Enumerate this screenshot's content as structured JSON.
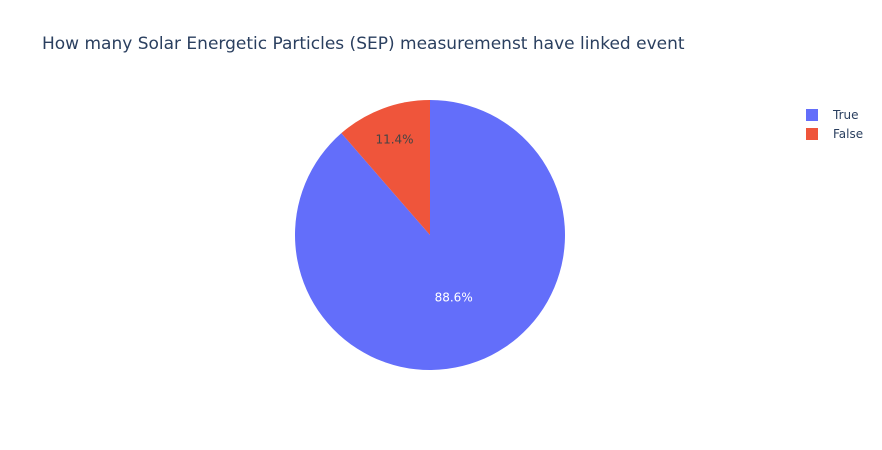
{
  "chart_data": {
    "type": "pie",
    "title": "How many Solar Energetic Particles (SEP) measuremenst have linked event",
    "slices": [
      {
        "label": "True",
        "value": 88.6,
        "display": "88.6%",
        "color": "#636efa",
        "label_color": "#ffffff"
      },
      {
        "label": "False",
        "value": 11.4,
        "display": "11.4%",
        "color": "#ef553b",
        "label_color": "#444444"
      }
    ],
    "legend_position": "top-right",
    "direction": "clockwise",
    "start": "top"
  }
}
